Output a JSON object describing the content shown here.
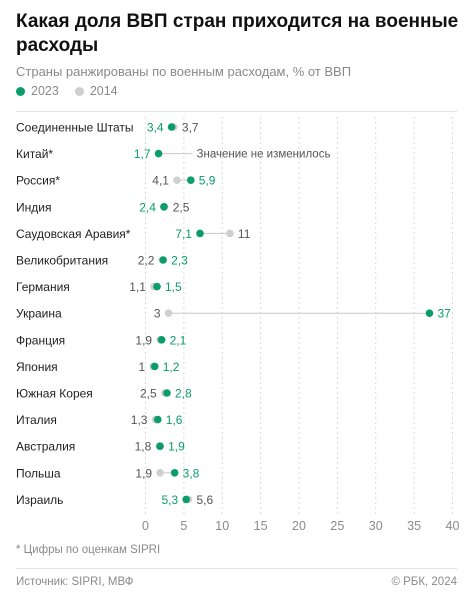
{
  "header": {
    "title": "Какая доля ВВП стран приходится на военные расходы",
    "subtitle": "Страны ранжированы по военным расходам, % от ВВП"
  },
  "legend": {
    "items": [
      {
        "label": "2023",
        "color": "#0a9d6a"
      },
      {
        "label": "2014",
        "color": "#cfcfcf"
      }
    ]
  },
  "chart_data": {
    "type": "dot",
    "title": "Какая доля ВВП стран приходится на военные расходы",
    "subtitle": "Страны ранжированы по военным расходам, % от ВВП",
    "xlim": [
      0,
      40
    ],
    "xticks": [
      0,
      5,
      10,
      15,
      20,
      25,
      30,
      35,
      40
    ],
    "grid": "vertical-dashed",
    "legend_position": "top-left",
    "colors": {
      "2023": "#0a9d6a",
      "2014": "#cfcfcf",
      "line": "#c8c8c8"
    },
    "series": [
      {
        "name": "2023"
      },
      {
        "name": "2014"
      }
    ],
    "categories": [
      "Соединенные Штаты",
      "Китай*",
      "Россия*",
      "Индия",
      "Саудовская Аравия*",
      "Великобритания",
      "Германия",
      "Украина",
      "Франция",
      "Япония",
      "Южная Корея",
      "Италия",
      "Австралия",
      "Польша",
      "Израиль"
    ],
    "rows": [
      {
        "country": "Соединенные Штаты",
        "v2023": 3.4,
        "v2014": 3.7,
        "l2023": "3,4",
        "l2014": "3,7"
      },
      {
        "country": "Китай*",
        "v2023": 1.7,
        "v2014": 1.7,
        "l2023": "1,7",
        "l2014": ""
      },
      {
        "country": "Россия*",
        "v2023": 5.9,
        "v2014": 4.1,
        "l2023": "5,9",
        "l2014": "4,1"
      },
      {
        "country": "Индия",
        "v2023": 2.4,
        "v2014": 2.5,
        "l2023": "2,4",
        "l2014": "2,5"
      },
      {
        "country": "Саудовская Аравия*",
        "v2023": 7.1,
        "v2014": 11,
        "l2023": "7,1",
        "l2014": "11"
      },
      {
        "country": "Великобритания",
        "v2023": 2.3,
        "v2014": 2.2,
        "l2023": "2,3",
        "l2014": "2,2"
      },
      {
        "country": "Германия",
        "v2023": 1.5,
        "v2014": 1.1,
        "l2023": "1,5",
        "l2014": "1,1"
      },
      {
        "country": "Украина",
        "v2023": 37,
        "v2014": 3,
        "l2023": "37",
        "l2014": "3"
      },
      {
        "country": "Франция",
        "v2023": 2.1,
        "v2014": 1.9,
        "l2023": "2,1",
        "l2014": "1,9"
      },
      {
        "country": "Япония",
        "v2023": 1.2,
        "v2014": 1,
        "l2023": "1,2",
        "l2014": "1"
      },
      {
        "country": "Южная Корея",
        "v2023": 2.8,
        "v2014": 2.5,
        "l2023": "2,8",
        "l2014": "2,5"
      },
      {
        "country": "Италия",
        "v2023": 1.6,
        "v2014": 1.3,
        "l2023": "1,6",
        "l2014": "1,3"
      },
      {
        "country": "Австралия",
        "v2023": 1.9,
        "v2014": 1.8,
        "l2023": "1,9",
        "l2014": "1,8"
      },
      {
        "country": "Польша",
        "v2023": 3.8,
        "v2014": 1.9,
        "l2023": "3,8",
        "l2014": "1,9"
      },
      {
        "country": "Израиль",
        "v2023": 5.3,
        "v2014": 5.6,
        "l2023": "5,3",
        "l2014": "5,6"
      }
    ],
    "annotations": [
      {
        "row": "Китай*",
        "text": "Значение не изменилось"
      }
    ]
  },
  "footer": {
    "footnote": "* Цифры по оценкам SIPRI",
    "source": "Источник: SIPRI, МВФ",
    "copyright": "© РБК, 2024"
  }
}
